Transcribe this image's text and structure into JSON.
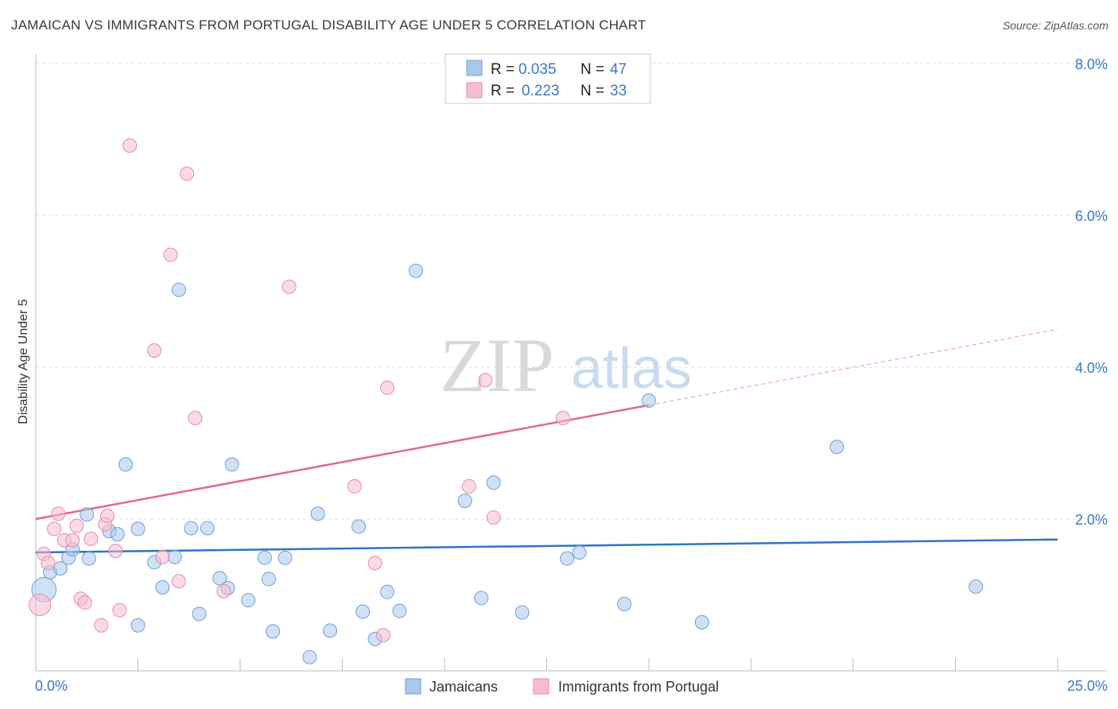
{
  "title": "JAMAICAN VS IMMIGRANTS FROM PORTUGAL DISABILITY AGE UNDER 5 CORRELATION CHART",
  "source": "Source: ZipAtlas.com",
  "colors": {
    "blue_fill": "#a9c8ef",
    "blue_stroke": "#6f9fd8",
    "blue_line": "#2f73c9",
    "pink_fill": "#f6bdd0",
    "pink_stroke": "#e88aa8",
    "pink_line": "#e0688f",
    "tick": "#3a78c8",
    "grid": "#dddddd"
  },
  "chart_data": {
    "type": "scatter",
    "title": "JAMAICAN VS IMMIGRANTS FROM PORTUGAL DISABILITY AGE UNDER 5 CORRELATION CHART",
    "xlabel": "",
    "ylabel": "Disability Age Under 5",
    "xlim": [
      0,
      25
    ],
    "ylim": [
      0,
      8
    ],
    "x_tick_labels": [
      "0.0%",
      "25.0%"
    ],
    "y_ticks": [
      2,
      4,
      6,
      8
    ],
    "y_tick_labels": [
      "2.0%",
      "4.0%",
      "6.0%",
      "8.0%"
    ],
    "watermark": {
      "part1": "ZIP",
      "part2": "atlas"
    },
    "legend": {
      "rows": [
        {
          "r_label": "R =",
          "r_value": "0.035",
          "n_label": "N =",
          "n_value": "47"
        },
        {
          "r_label": "R =",
          "r_value": "0.223",
          "n_label": "N =",
          "n_value": "33"
        }
      ]
    },
    "series": [
      {
        "name": "Jamaicans",
        "color": "blue",
        "trend": {
          "x": [
            0,
            25
          ],
          "y": [
            1.56,
            1.73
          ]
        },
        "points": [
          [
            0.2,
            1.07,
            1.8
          ],
          [
            0.35,
            1.3,
            1.0
          ],
          [
            0.6,
            1.35,
            1.0
          ],
          [
            0.8,
            1.49,
            1.0
          ],
          [
            0.9,
            1.6,
            1.0
          ],
          [
            1.3,
            1.48,
            1.0
          ],
          [
            1.8,
            1.84,
            1.0
          ],
          [
            2.0,
            1.8,
            1.0
          ],
          [
            2.2,
            2.72,
            1.0
          ],
          [
            2.5,
            1.87,
            1.0
          ],
          [
            2.5,
            0.6,
            1.0
          ],
          [
            2.9,
            1.43,
            1.0
          ],
          [
            3.1,
            1.1,
            1.0
          ],
          [
            3.4,
            1.5,
            1.0
          ],
          [
            3.5,
            5.02,
            1.0
          ],
          [
            3.8,
            1.88,
            1.0
          ],
          [
            4.0,
            0.75,
            1.0
          ],
          [
            4.2,
            1.88,
            1.0
          ],
          [
            4.5,
            1.22,
            1.0
          ],
          [
            4.7,
            1.09,
            1.0
          ],
          [
            4.8,
            2.72,
            1.0
          ],
          [
            5.2,
            0.93,
            1.0
          ],
          [
            5.6,
            1.49,
            1.0
          ],
          [
            5.7,
            1.21,
            1.0
          ],
          [
            5.8,
            0.52,
            1.0
          ],
          [
            6.1,
            1.49,
            1.0
          ],
          [
            6.7,
            0.18,
            1.0
          ],
          [
            6.9,
            2.07,
            1.0
          ],
          [
            7.2,
            0.53,
            1.0
          ],
          [
            7.9,
            1.9,
            1.0
          ],
          [
            8.0,
            0.78,
            1.0
          ],
          [
            8.3,
            0.42,
            1.0
          ],
          [
            8.6,
            1.04,
            1.0
          ],
          [
            8.9,
            0.79,
            1.0
          ],
          [
            9.3,
            5.27,
            1.0
          ],
          [
            10.5,
            2.24,
            1.0
          ],
          [
            10.9,
            0.96,
            1.0
          ],
          [
            11.2,
            2.48,
            1.0
          ],
          [
            11.9,
            0.77,
            1.0
          ],
          [
            13.0,
            1.48,
            1.0
          ],
          [
            13.3,
            1.56,
            1.0
          ],
          [
            14.4,
            0.88,
            1.0
          ],
          [
            15.0,
            3.56,
            1.0
          ],
          [
            16.3,
            0.64,
            1.0
          ],
          [
            19.6,
            2.95,
            1.0
          ],
          [
            23.0,
            1.11,
            1.0
          ],
          [
            1.25,
            2.06,
            1.0
          ]
        ]
      },
      {
        "name": "Immigrants from Portugal",
        "color": "pink",
        "trend": {
          "x": [
            0,
            15
          ],
          "y": [
            2.0,
            3.5
          ]
        },
        "trend_dashed": {
          "x": [
            15,
            25
          ],
          "y": [
            3.5,
            4.5
          ]
        },
        "points": [
          [
            0.1,
            0.87,
            1.6
          ],
          [
            0.2,
            1.54,
            1.0
          ],
          [
            0.3,
            1.42,
            1.0
          ],
          [
            0.45,
            1.87,
            1.0
          ],
          [
            0.55,
            2.07,
            1.0
          ],
          [
            0.7,
            1.72,
            1.0
          ],
          [
            0.9,
            1.72,
            1.0
          ],
          [
            1.0,
            1.91,
            1.0
          ],
          [
            1.1,
            0.95,
            1.0
          ],
          [
            1.2,
            0.9,
            1.0
          ],
          [
            1.35,
            1.74,
            1.0
          ],
          [
            1.6,
            0.6,
            1.0
          ],
          [
            1.7,
            1.93,
            1.0
          ],
          [
            1.75,
            2.04,
            1.0
          ],
          [
            1.95,
            1.58,
            1.0
          ],
          [
            2.05,
            0.8,
            1.0
          ],
          [
            2.3,
            6.92,
            1.0
          ],
          [
            2.9,
            4.22,
            1.0
          ],
          [
            3.1,
            1.5,
            1.0
          ],
          [
            3.3,
            5.48,
            1.0
          ],
          [
            3.5,
            1.18,
            1.0
          ],
          [
            3.7,
            6.55,
            1.0
          ],
          [
            3.9,
            3.33,
            1.0
          ],
          [
            4.6,
            1.05,
            1.0
          ],
          [
            6.2,
            5.06,
            1.0
          ],
          [
            7.8,
            2.43,
            1.0
          ],
          [
            8.3,
            1.42,
            1.0
          ],
          [
            8.5,
            0.47,
            1.0
          ],
          [
            8.6,
            3.73,
            1.0
          ],
          [
            10.6,
            2.43,
            1.0
          ],
          [
            11.0,
            3.83,
            1.0
          ],
          [
            11.2,
            2.02,
            1.0
          ],
          [
            12.9,
            3.33,
            1.0
          ]
        ]
      }
    ]
  }
}
